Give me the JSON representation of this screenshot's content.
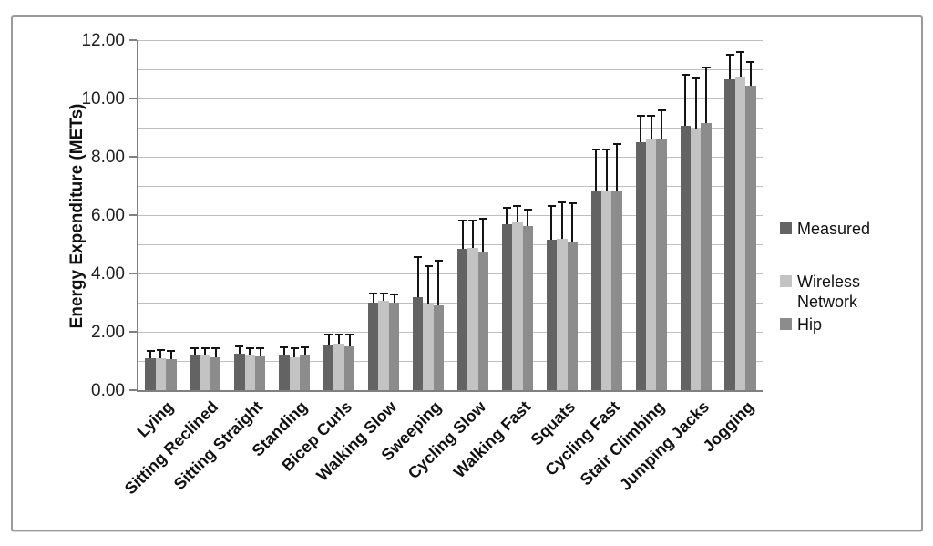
{
  "chart_data": {
    "type": "bar",
    "title": "",
    "xlabel": "",
    "ylabel": "Energy Expenditure (METs)",
    "ylim": [
      0,
      12
    ],
    "ytick_step": 2,
    "gridline_step": 1,
    "ytick_labels": [
      "0.00",
      "2.00",
      "4.00",
      "6.00",
      "8.00",
      "10.00",
      "12.00"
    ],
    "grid": true,
    "legend_position": "right",
    "error_bars": "upper",
    "categories": [
      "Lying",
      "Sitting Reclined",
      "Sitting Straight",
      "Standing",
      "Bicep Curls",
      "Walking Slow",
      "Sweeping",
      "Cycling Slow",
      "Walking Fast",
      "Squats",
      "Cycling Fast",
      "Stair Climbing",
      "Jumping Jacks",
      "Jogging"
    ],
    "series": [
      {
        "name": "Measured",
        "color": "#636363",
        "values": [
          1.1,
          1.2,
          1.25,
          1.22,
          1.55,
          3.0,
          3.2,
          4.85,
          5.7,
          5.15,
          6.85,
          8.5,
          9.05,
          10.65
        ],
        "errors_up": [
          0.25,
          0.25,
          0.25,
          0.25,
          0.35,
          0.3,
          1.35,
          0.95,
          0.55,
          1.15,
          1.4,
          0.9,
          1.75,
          0.85
        ]
      },
      {
        "name": "Wireless Network",
        "color": "#c3c3c3",
        "values": [
          1.08,
          1.18,
          1.22,
          1.13,
          1.6,
          3.05,
          2.95,
          4.88,
          5.75,
          5.2,
          6.85,
          8.58,
          8.97,
          10.75
        ],
        "errors_up": [
          0.28,
          0.25,
          0.22,
          0.3,
          0.3,
          0.25,
          1.3,
          0.92,
          0.57,
          1.23,
          1.4,
          0.82,
          1.73,
          0.85
        ]
      },
      {
        "name": "Hip",
        "color": "#8c8c8c",
        "values": [
          1.05,
          1.13,
          1.17,
          1.19,
          1.5,
          3.0,
          2.92,
          4.75,
          5.63,
          5.05,
          6.85,
          8.62,
          9.15,
          10.43
        ],
        "errors_up": [
          0.3,
          0.3,
          0.26,
          0.28,
          0.42,
          0.28,
          1.53,
          1.13,
          0.56,
          1.35,
          1.59,
          0.98,
          1.9,
          0.82
        ]
      }
    ],
    "colors": {
      "gridline": "#bfbfbf",
      "axis": "#808080",
      "error_bar": "#141414",
      "chart_border": "#9a9a9a",
      "text": "#111111"
    }
  }
}
